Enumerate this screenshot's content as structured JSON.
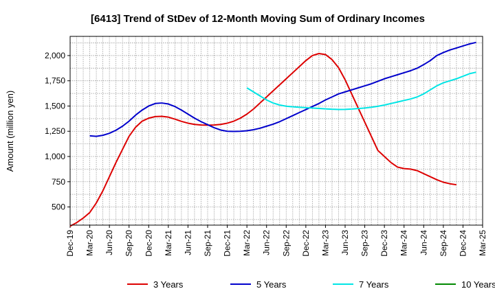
{
  "chart_data": {
    "type": "line",
    "title": "[6413]  Trend of StDev of 12-Month Moving Sum of Ordinary Incomes",
    "xlabel": "",
    "ylabel": "Amount (million yen)",
    "ylim": [
      320,
      2190
    ],
    "yticks": [
      500,
      750,
      1000,
      1250,
      1500,
      1750,
      2000
    ],
    "ytick_labels": [
      "500",
      "750",
      "1,000",
      "1,250",
      "1,500",
      "1,750",
      "2,000"
    ],
    "xtick_labels": [
      "Dec-19",
      "Mar-20",
      "Jun-20",
      "Sep-20",
      "Dec-20",
      "Mar-21",
      "Jun-21",
      "Sep-21",
      "Dec-21",
      "Mar-22",
      "Jun-22",
      "Sep-22",
      "Dec-22",
      "Mar-23",
      "Jun-23",
      "Sep-23",
      "Dec-23",
      "Mar-24",
      "Jun-24",
      "Sep-24",
      "Dec-24",
      "Mar-25"
    ],
    "grid": true,
    "legend_position": "bottom",
    "series": [
      {
        "name": "3 Years",
        "color": "#dd0000",
        "start_index": 0,
        "values": [
          310,
          345,
          390,
          445,
          540,
          660,
          800,
          940,
          1070,
          1200,
          1290,
          1350,
          1380,
          1395,
          1398,
          1390,
          1370,
          1348,
          1330,
          1318,
          1312,
          1310,
          1312,
          1318,
          1330,
          1350,
          1380,
          1420,
          1470,
          1530,
          1590,
          1650,
          1710,
          1770,
          1830,
          1890,
          1950,
          2000,
          2020,
          2010,
          1960,
          1880,
          1760,
          1620,
          1480,
          1340,
          1200,
          1060,
          1000,
          940,
          895,
          880,
          875,
          860,
          830,
          800,
          770,
          745,
          730,
          720
        ]
      },
      {
        "name": "5 Years",
        "color": "#0000cc",
        "start_index": 3,
        "values": [
          1205,
          1200,
          1210,
          1230,
          1260,
          1300,
          1350,
          1410,
          1460,
          1500,
          1525,
          1530,
          1520,
          1495,
          1460,
          1420,
          1380,
          1345,
          1315,
          1285,
          1262,
          1250,
          1248,
          1250,
          1255,
          1265,
          1280,
          1300,
          1320,
          1345,
          1375,
          1405,
          1435,
          1465,
          1495,
          1525,
          1560,
          1590,
          1620,
          1640,
          1660,
          1680,
          1700,
          1720,
          1745,
          1770,
          1790,
          1810,
          1830,
          1850,
          1875,
          1910,
          1950,
          2000,
          2030,
          2055,
          2075,
          2095,
          2115,
          2130
        ]
      },
      {
        "name": "7 Years",
        "color": "#00e5e5",
        "start_index": 27,
        "values": [
          1680,
          1640,
          1600,
          1560,
          1530,
          1510,
          1498,
          1492,
          1488,
          1484,
          1480,
          1476,
          1472,
          1468,
          1466,
          1467,
          1470,
          1475,
          1480,
          1488,
          1497,
          1510,
          1525,
          1540,
          1555,
          1570,
          1590,
          1620,
          1660,
          1700,
          1730,
          1750,
          1770,
          1795,
          1820,
          1835
        ]
      },
      {
        "name": "10 Years",
        "color": "#008800",
        "start_index": 0,
        "values": []
      }
    ]
  }
}
